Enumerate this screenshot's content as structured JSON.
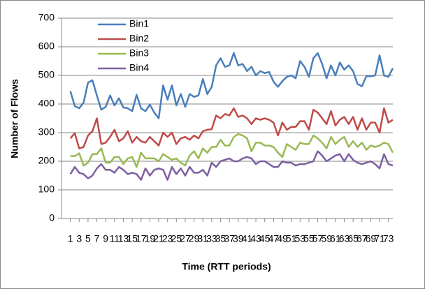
{
  "chart_data": {
    "type": "line",
    "xlabel": "Time (RTT periods)",
    "ylabel": "Number of Flows",
    "x": [
      1,
      2,
      3,
      4,
      5,
      6,
      7,
      8,
      9,
      10,
      11,
      12,
      13,
      14,
      15,
      16,
      17,
      18,
      19,
      20,
      21,
      22,
      23,
      24,
      25,
      26,
      27,
      28,
      29,
      30,
      31,
      32,
      33,
      34,
      35,
      36,
      37,
      38,
      39,
      40,
      41,
      42,
      43,
      44,
      45,
      46,
      47,
      48,
      49,
      50,
      51,
      52,
      53,
      54,
      55,
      56,
      57,
      58,
      59,
      60,
      61,
      62,
      63,
      64,
      65,
      66,
      67,
      68,
      69,
      70,
      71,
      72,
      73,
      74
    ],
    "xlim": [
      -1,
      74
    ],
    "xticks": [
      1,
      3,
      5,
      7,
      9,
      11,
      13,
      15,
      17,
      19,
      21,
      23,
      25,
      27,
      29,
      31,
      33,
      35,
      37,
      39,
      41,
      43,
      45,
      47,
      49,
      51,
      53,
      55,
      57,
      59,
      61,
      63,
      65,
      67,
      69,
      71,
      73
    ],
    "ylim": [
      0,
      700
    ],
    "yticks": [
      0,
      100,
      200,
      300,
      400,
      500,
      600,
      700
    ],
    "grid": true,
    "legend": "top-left",
    "series": [
      {
        "name": "Bin1",
        "color": "#4a7ebb",
        "values": [
          445,
          393,
          385,
          405,
          475,
          483,
          430,
          380,
          390,
          430,
          395,
          420,
          388,
          385,
          375,
          432,
          385,
          375,
          398,
          370,
          350,
          465,
          415,
          465,
          395,
          435,
          390,
          435,
          425,
          430,
          487,
          435,
          460,
          535,
          560,
          530,
          535,
          578,
          535,
          540,
          515,
          530,
          500,
          515,
          508,
          512,
          478,
          460,
          480,
          495,
          500,
          490,
          550,
          530,
          495,
          560,
          578,
          540,
          490,
          535,
          500,
          545,
          520,
          535,
          515,
          470,
          462,
          497,
          497,
          500,
          570,
          500,
          495,
          525
        ]
      },
      {
        "name": "Bin2",
        "color": "#be4b48",
        "values": [
          280,
          298,
          245,
          250,
          290,
          305,
          350,
          260,
          265,
          285,
          310,
          270,
          280,
          305,
          265,
          285,
          270,
          265,
          285,
          270,
          255,
          300,
          285,
          300,
          260,
          280,
          285,
          275,
          290,
          280,
          305,
          310,
          312,
          360,
          350,
          365,
          360,
          385,
          355,
          360,
          350,
          330,
          350,
          345,
          350,
          345,
          335,
          290,
          335,
          310,
          320,
          320,
          340,
          340,
          310,
          380,
          370,
          350,
          330,
          375,
          325,
          345,
          355,
          330,
          355,
          310,
          350,
          310,
          335,
          335,
          300,
          385,
          335,
          345
        ]
      },
      {
        "name": "Bin3",
        "color": "#98b954",
        "values": [
          218,
          218,
          228,
          185,
          195,
          225,
          225,
          245,
          195,
          195,
          215,
          215,
          190,
          210,
          215,
          180,
          230,
          210,
          210,
          210,
          200,
          225,
          215,
          205,
          210,
          195,
          185,
          220,
          235,
          210,
          245,
          230,
          250,
          250,
          275,
          255,
          255,
          285,
          295,
          290,
          280,
          235,
          265,
          265,
          255,
          255,
          250,
          230,
          215,
          260,
          250,
          240,
          265,
          260,
          260,
          290,
          280,
          265,
          245,
          285,
          260,
          275,
          285,
          250,
          270,
          250,
          265,
          240,
          255,
          250,
          255,
          265,
          260,
          230
        ]
      },
      {
        "name": "Bin4",
        "color": "#7d60a0",
        "values": [
          155,
          180,
          160,
          155,
          140,
          150,
          175,
          190,
          170,
          170,
          160,
          180,
          170,
          155,
          160,
          155,
          135,
          175,
          150,
          170,
          175,
          170,
          135,
          180,
          155,
          175,
          150,
          180,
          160,
          160,
          170,
          150,
          195,
          180,
          200,
          205,
          210,
          200,
          200,
          210,
          215,
          210,
          190,
          200,
          200,
          190,
          180,
          180,
          200,
          195,
          195,
          185,
          190,
          190,
          195,
          200,
          235,
          220,
          200,
          210,
          220,
          225,
          200,
          225,
          205,
          195,
          190,
          195,
          200,
          190,
          175,
          225,
          190,
          185
        ]
      }
    ]
  }
}
